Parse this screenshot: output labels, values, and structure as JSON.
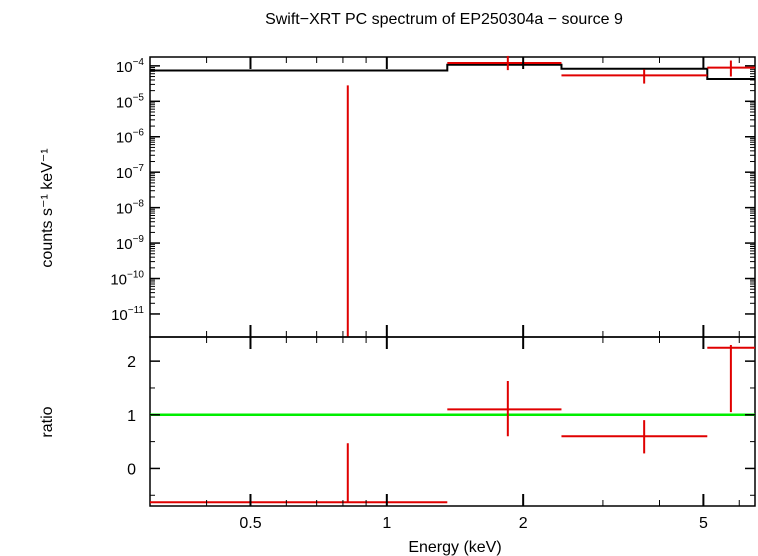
{
  "chart_data": [
    {
      "type": "line",
      "panel": "spectrum",
      "title": "Swift−XRT PC spectrum of EP250304a − source 9",
      "ylabel": "counts s⁻¹ keV⁻¹",
      "yscale": "log",
      "xscale": "log",
      "xlim": [
        0.3,
        6.5
      ],
      "ylim_log10": [
        -11.65,
        -3.75
      ],
      "ytick_exponents": [
        -4,
        -5,
        -6,
        -7,
        -8,
        -9,
        -10,
        -11
      ],
      "model_steps": [
        {
          "xlo": 0.3,
          "xhi": 1.36,
          "y_log10": -4.13
        },
        {
          "xlo": 1.36,
          "xhi": 2.43,
          "y_log10": -3.97
        },
        {
          "xlo": 2.43,
          "xhi": 5.1,
          "y_log10": -4.08
        },
        {
          "xlo": 5.1,
          "xhi": 6.5,
          "y_log10": -4.37
        }
      ],
      "data_points": [
        {
          "x": 0.82,
          "xlo": 0.82,
          "xhi": 0.82,
          "y_log10": -4.55,
          "y_lo_log10": -11.65,
          "y_hi_log10": -4.55
        },
        {
          "x": 1.85,
          "xlo": 1.36,
          "xhi": 2.43,
          "y_log10": -3.92,
          "y_lo_log10": -4.12,
          "y_hi_log10": -3.72
        },
        {
          "x": 3.7,
          "xlo": 2.43,
          "xhi": 5.1,
          "y_log10": -4.27,
          "y_lo_log10": -4.5,
          "y_hi_log10": -4.1
        },
        {
          "x": 5.75,
          "xlo": 5.1,
          "xhi": 6.5,
          "y_log10": -4.05,
          "y_lo_log10": -4.3,
          "y_hi_log10": -3.85
        }
      ]
    },
    {
      "type": "scatter",
      "panel": "ratio",
      "xlabel": "Energy (keV)",
      "ylabel": "ratio",
      "xscale": "log",
      "xlim": [
        0.3,
        6.5
      ],
      "ylim": [
        -0.7,
        2.45
      ],
      "yticks": [
        0,
        1,
        2
      ],
      "xticks": [
        0.5,
        1,
        2,
        5
      ],
      "xtick_labels": [
        "0.5",
        "1",
        "2",
        "5"
      ],
      "reference_line": {
        "y": 1,
        "color": "#00ee00"
      },
      "data_points": [
        {
          "x": 0.82,
          "xlo": 0.3,
          "xhi": 1.36,
          "y": -0.63,
          "ylo": -0.63,
          "yhi": 0.47
        },
        {
          "x": 1.85,
          "xlo": 1.36,
          "xhi": 2.43,
          "y": 1.1,
          "ylo": 0.6,
          "yhi": 1.63
        },
        {
          "x": 3.7,
          "xlo": 2.43,
          "xhi": 5.1,
          "y": 0.6,
          "ylo": 0.28,
          "yhi": 0.9
        },
        {
          "x": 5.75,
          "xlo": 5.1,
          "xhi": 6.5,
          "y": 2.25,
          "ylo": 1.05,
          "yhi": 2.3
        }
      ]
    }
  ],
  "colors": {
    "model": "#000000",
    "data": "#e00000",
    "reference": "#00ee00",
    "axes": "#000000"
  }
}
